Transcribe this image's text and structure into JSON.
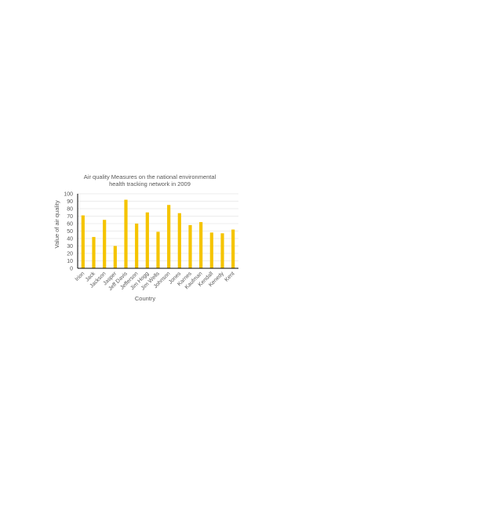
{
  "chart_data": {
    "type": "bar",
    "title": "Air quality Measures on the national environmental health tracking network in 2009",
    "xlabel": "Country",
    "ylabel": "Value of air quality",
    "ylim": [
      0,
      100
    ],
    "yticks": [
      0,
      10,
      20,
      30,
      40,
      50,
      60,
      70,
      80,
      90,
      100
    ],
    "grid": true,
    "legend": "none",
    "categories": [
      "Irion",
      "Jack",
      "Jackson",
      "Jasper",
      "Jeff Davis",
      "Jefferson",
      "Jim Hogg",
      "Jim Wells",
      "Johnson",
      "Jones",
      "Karnes",
      "Kaufman",
      "Kendall",
      "Kenedy",
      "Kent"
    ],
    "values": [
      71,
      42,
      65,
      30,
      92,
      60,
      75,
      49,
      85,
      74,
      58,
      62,
      48,
      47,
      52
    ],
    "colors": {
      "bar": "#f5c400",
      "axis": "#000000",
      "grid": "#d9d9d9",
      "text": "#595959"
    }
  }
}
